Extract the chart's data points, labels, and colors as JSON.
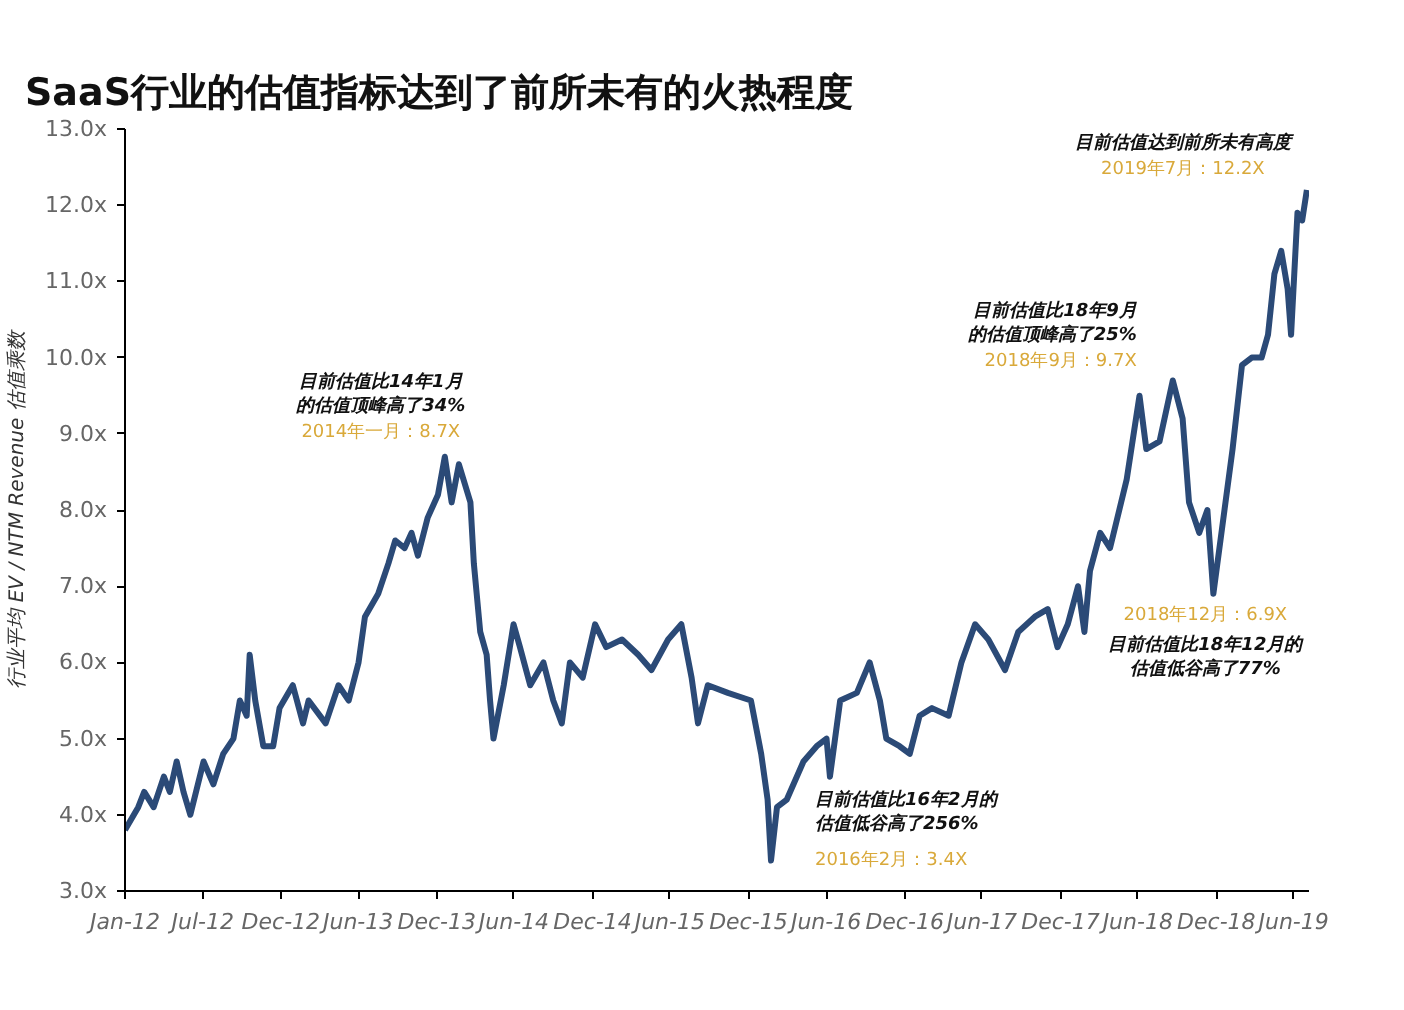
{
  "chart_data": {
    "type": "line",
    "title": "SaaS行业的估值指标达到了前所未有的火热程度",
    "ylabel": "行业平均 EV / NTM Revenue 估值乘数",
    "x": [
      "2012-01-01",
      "2012-02-01",
      "2012-02-15",
      "2012-03-08",
      "2012-04-01",
      "2012-04-15",
      "2012-05-01",
      "2012-05-17",
      "2012-06-02",
      "2012-07-03",
      "2012-07-26",
      "2012-08-18",
      "2012-09-11",
      "2012-09-26",
      "2012-10-12",
      "2012-10-19",
      "2012-11-01",
      "2012-11-20",
      "2012-12-13",
      "2012-12-28",
      "2013-01-28",
      "2013-02-21",
      "2013-03-06",
      "2013-04-15",
      "2013-05-15",
      "2013-06-08",
      "2013-07-01",
      "2013-07-16",
      "2013-08-16",
      "2013-09-09",
      "2013-09-25",
      "2013-10-17",
      "2013-11-02",
      "2013-11-17",
      "2013-12-10",
      "2014-01-03",
      "2014-01-19",
      "2014-02-04",
      "2014-02-21",
      "2014-03-20",
      "2014-03-28",
      "2014-04-12",
      "2014-04-27",
      "2014-05-05",
      "2014-05-13",
      "2014-06-06",
      "2014-06-29",
      "2014-07-14",
      "2014-08-07",
      "2014-09-07",
      "2014-09-30",
      "2014-10-20",
      "2014-11-08",
      "2014-12-08",
      "2015-01-06",
      "2015-02-01",
      "2015-03-10",
      "2015-04-17",
      "2015-05-18",
      "2015-06-26",
      "2015-07-27",
      "2015-08-20",
      "2015-09-04",
      "2015-09-27",
      "2015-11-13",
      "2016-01-06",
      "2016-01-30",
      "2016-02-14",
      "2016-02-22",
      "2016-03-07",
      "2016-03-30",
      "2016-05-08",
      "2016-06-08",
      "2016-07-01",
      "2016-07-09",
      "2016-08-02",
      "2016-09-10",
      "2016-10-10",
      "2016-11-03",
      "2016-11-18",
      "2016-12-19",
      "2017-01-12",
      "2017-02-04",
      "2017-03-05",
      "2017-04-13",
      "2017-05-13",
      "2017-06-14",
      "2017-07-15",
      "2017-08-23",
      "2017-09-23",
      "2017-11-01",
      "2017-12-01",
      "2017-12-24",
      "2018-01-17",
      "2018-02-10",
      "2018-02-25",
      "2018-03-10",
      "2018-04-03",
      "2018-04-26",
      "2018-06-04",
      "2018-07-04",
      "2018-07-20",
      "2018-08-20",
      "2018-09-20",
      "2018-10-13",
      "2018-10-28",
      "2018-11-21",
      "2018-12-10",
      "2018-12-24",
      "2019-02-07",
      "2019-03-01",
      "2019-03-24",
      "2019-04-16",
      "2019-05-01",
      "2019-05-16",
      "2019-06-01",
      "2019-06-16",
      "2019-06-24",
      "2019-07-09",
      "2019-07-20",
      "2019-07-31"
    ],
    "series": [
      {
        "color": "#2b4a77",
        "values": [
          3.8,
          4.1,
          4.3,
          4.1,
          4.5,
          4.3,
          4.7,
          4.3,
          4.0,
          4.7,
          4.4,
          4.8,
          5.0,
          5.5,
          5.3,
          6.1,
          5.5,
          4.9,
          4.9,
          5.4,
          5.7,
          5.2,
          5.5,
          5.2,
          5.7,
          5.5,
          6.0,
          6.6,
          6.9,
          7.3,
          7.6,
          7.5,
          7.7,
          7.4,
          7.9,
          8.2,
          8.7,
          8.1,
          8.6,
          8.1,
          7.3,
          6.4,
          6.1,
          5.5,
          5.0,
          5.7,
          6.5,
          6.2,
          5.7,
          6.0,
          5.5,
          5.2,
          6.0,
          5.8,
          6.5,
          6.2,
          6.3,
          6.1,
          5.9,
          6.3,
          6.5,
          5.8,
          5.2,
          5.7,
          5.6,
          5.5,
          4.8,
          4.2,
          3.4,
          4.1,
          4.2,
          4.7,
          4.9,
          5.0,
          4.5,
          5.5,
          5.6,
          6.0,
          5.5,
          5.0,
          4.9,
          4.8,
          5.3,
          5.4,
          5.3,
          6.0,
          6.5,
          6.3,
          5.9,
          6.4,
          6.6,
          6.7,
          6.2,
          6.5,
          7.0,
          6.4,
          7.2,
          7.7,
          7.5,
          8.4,
          9.5,
          8.8,
          8.9,
          9.7,
          9.2,
          8.1,
          7.7,
          8.0,
          6.9,
          8.8,
          9.9,
          10.0,
          10.0,
          10.3,
          11.1,
          11.4,
          10.9,
          10.3,
          11.9,
          11.8,
          12.2
        ]
      }
    ],
    "xlim": [
      "2012-01-01",
      "2019-08-05"
    ],
    "xticks": [
      {
        "value": "2012-01-01",
        "label": "Jan-12"
      },
      {
        "value": "2012-07-01",
        "label": "Jul-12"
      },
      {
        "value": "2012-12-31",
        "label": "Dec-12"
      },
      {
        "value": "2013-06-30",
        "label": "Jun-13"
      },
      {
        "value": "2013-12-31",
        "label": "Dec-13"
      },
      {
        "value": "2014-06-30",
        "label": "Jun-14"
      },
      {
        "value": "2014-12-31",
        "label": "Dec-14"
      },
      {
        "value": "2015-06-30",
        "label": "Jun-15"
      },
      {
        "value": "2015-12-31",
        "label": "Dec-15"
      },
      {
        "value": "2016-06-30",
        "label": "Jun-16"
      },
      {
        "value": "2016-12-31",
        "label": "Dec-16"
      },
      {
        "value": "2017-06-30",
        "label": "Jun-17"
      },
      {
        "value": "2017-12-31",
        "label": "Dec-17"
      },
      {
        "value": "2018-06-30",
        "label": "Jun-18"
      },
      {
        "value": "2018-12-31",
        "label": "Dec-18"
      },
      {
        "value": "2019-06-30",
        "label": "Jun-19"
      }
    ],
    "ylim": [
      3,
      13
    ],
    "yticks": [
      {
        "value": 3,
        "label": "3.0x"
      },
      {
        "value": 4,
        "label": "4.0x"
      },
      {
        "value": 5,
        "label": "5.0x"
      },
      {
        "value": 6,
        "label": "6.0x"
      },
      {
        "value": 7,
        "label": "7.0x"
      },
      {
        "value": 8,
        "label": "8.0x"
      },
      {
        "value": 9,
        "label": "9.0x"
      },
      {
        "value": 10,
        "label": "10.0x"
      },
      {
        "value": 11,
        "label": "11.0x"
      },
      {
        "value": 12,
        "label": "12.0x"
      },
      {
        "value": 13,
        "label": "13.0x"
      }
    ],
    "grid": false,
    "marker": "none",
    "line_style": "solid",
    "annotations": [
      {
        "text": "目前估值比14年1月的估值顶峰高了34%",
        "x": "2014-01-19",
        "y": 8.7
      },
      {
        "text": "2014年一月：8.7X",
        "x": "2014-01-19",
        "y": 8.7
      },
      {
        "text": "目前估值比16年2月的估值低谷高了256%",
        "x": "2016-02-22",
        "y": 3.4
      },
      {
        "text": "2016年2月：3.4X",
        "x": "2016-02-22",
        "y": 3.4
      },
      {
        "text": "目前估值比18年9月的估值顶峰高了25%",
        "x": "2018-09-20",
        "y": 9.7
      },
      {
        "text": "2018年9月：9.7X",
        "x": "2018-09-20",
        "y": 9.7
      },
      {
        "text": "目前估值比18年12月的估值低谷高了77%",
        "x": "2018-12-24",
        "y": 6.9
      },
      {
        "text": "2018年12月：6.9X",
        "x": "2018-12-24",
        "y": 6.9
      },
      {
        "text": "目前估值达到前所未有高度",
        "x": "2019-07-31",
        "y": 12.2
      },
      {
        "text": "2019年7月：12.2X",
        "x": "2019-07-31",
        "y": 12.2
      }
    ]
  }
}
